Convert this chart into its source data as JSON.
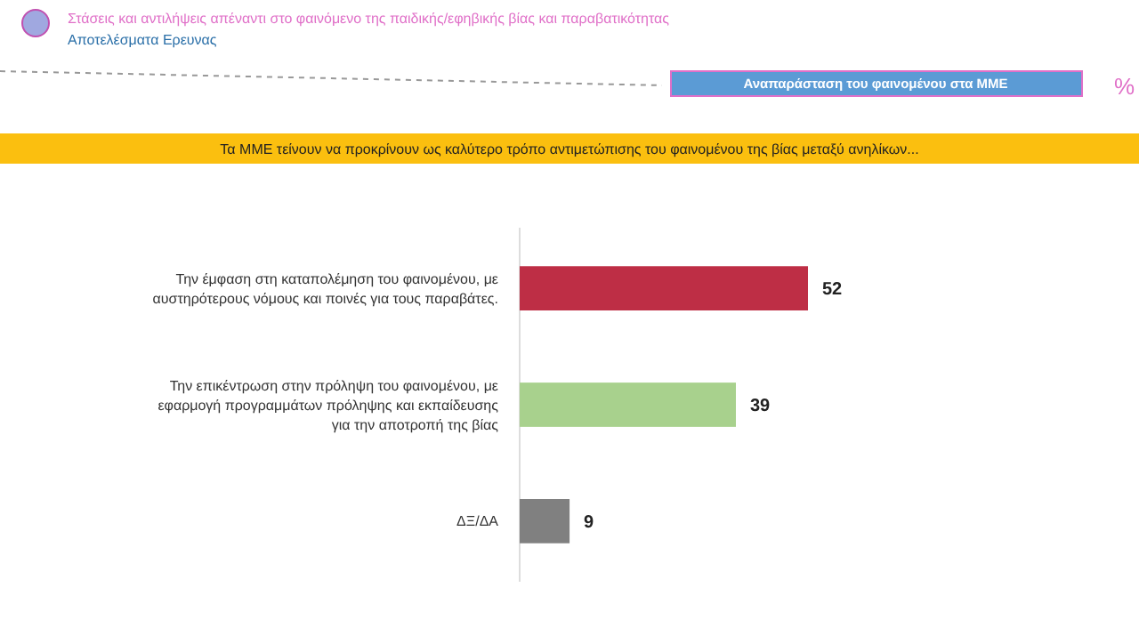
{
  "chart_data": {
    "type": "bar",
    "orientation": "horizontal",
    "title": "Στάσεις και αντιλήψεις απέναντι στο φαινόμενο της παιδικής/εφηβικής βίας και παραβατικότητας",
    "subtitle": "Αποτελέσματα Ερευνας",
    "annotations": [
      "Αναπαράσταση του φαινομένου στα ΜΜΕ",
      "%",
      "Τα ΜΜΕ τείνουν να προκρίνουν ως καλύτερο τρόπο αντιμετώπισης του φαινομένου της βίας μεταξύ ανηλίκων..."
    ],
    "categories": [
      "Την έμφαση στη καταπολέμηση του φαινομένου, με\nαυστηρότερους νόμους και ποινές για τους παραβάτες.",
      "Την επικέντρωση στην πρόληψη του φαινομένου, με\nεφαρμογή προγραμμάτων πρόληψης και εκπαίδευσης\nγια την αποτροπή της βίας",
      "ΔΞ/ΔΑ"
    ],
    "values": [
      52,
      39,
      9
    ],
    "colors": [
      "#be2e45",
      "#a8d18d",
      "#808080"
    ],
    "data_labels": true
  }
}
